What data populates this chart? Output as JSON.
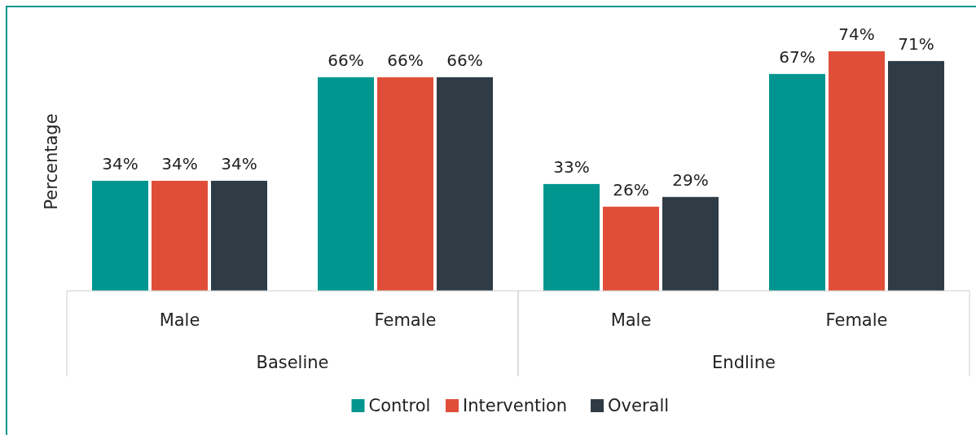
{
  "chart_data": {
    "type": "bar",
    "ylabel": "Percentage",
    "categories": [
      "Male",
      "Female",
      "Male",
      "Female"
    ],
    "annotations": [
      "Baseline",
      "Endline"
    ],
    "series": [
      {
        "name": "Control",
        "color": "#00968f",
        "values": [
          34,
          66,
          33,
          67
        ],
        "value_labels": [
          "34%",
          "66%",
          "33%",
          "67%"
        ]
      },
      {
        "name": "Intervention",
        "color": "#e04e39",
        "values": [
          34,
          66,
          26,
          74
        ],
        "value_labels": [
          "34%",
          "66%",
          "26%",
          "74%"
        ]
      },
      {
        "name": "Overall",
        "color": "#2f3c46",
        "values": [
          34,
          66,
          29,
          71
        ],
        "value_labels": [
          "34%",
          "66%",
          "29%",
          "71%"
        ]
      }
    ],
    "legend": "bottom"
  }
}
